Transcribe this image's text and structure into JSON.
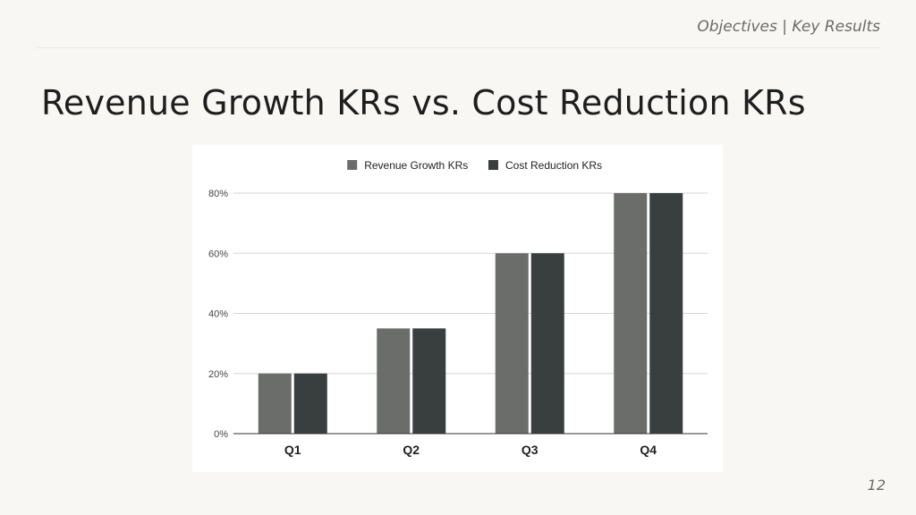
{
  "header": {
    "section_label": "Objectives | Key Results"
  },
  "slide": {
    "title": "Revenue Growth KRs vs. Cost Reduction KRs",
    "page_number": "12"
  },
  "colors": {
    "series_1": "#6b6d6b",
    "series_2": "#393e3e",
    "gridline": "#d6d6d6",
    "baseline": "#333333"
  },
  "chart_data": {
    "type": "bar",
    "categories": [
      "Q1",
      "Q2",
      "Q3",
      "Q4"
    ],
    "series": [
      {
        "name": "Revenue Growth KRs",
        "values": [
          20,
          35,
          60,
          80
        ]
      },
      {
        "name": "Cost Reduction KRs",
        "values": [
          20,
          35,
          60,
          80
        ]
      }
    ],
    "y_ticks": [
      "0%",
      "20%",
      "40%",
      "60%",
      "80%"
    ],
    "ylim": [
      0,
      80
    ],
    "grid": true,
    "legend": "top-center"
  }
}
